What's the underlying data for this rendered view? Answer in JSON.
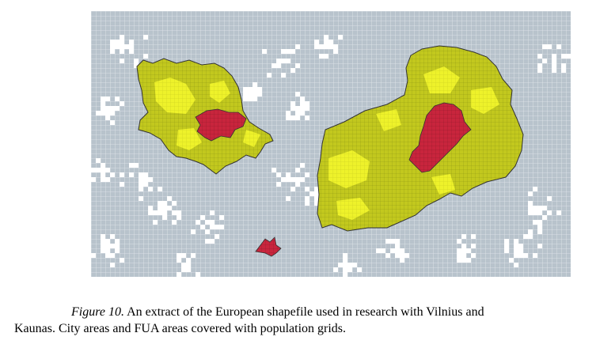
{
  "figure": {
    "caption_label": "Figure 10.",
    "caption_line1": "An extract of the European shapefile used in research with Vilnius and",
    "caption_line2": "Kaunas. City areas and FUA areas covered with population grids."
  },
  "map": {
    "layers": [
      {
        "id": "population-grid",
        "color": "#b8c3cc"
      },
      {
        "id": "fua-area",
        "color": "#c2c81e",
        "highlight": "#eef22a"
      },
      {
        "id": "city-area",
        "color": "#c8253d"
      }
    ],
    "regions": [
      "kaunas-fua",
      "kaunas-city",
      "vilnius-fua",
      "vilnius-city",
      "small-city"
    ]
  }
}
